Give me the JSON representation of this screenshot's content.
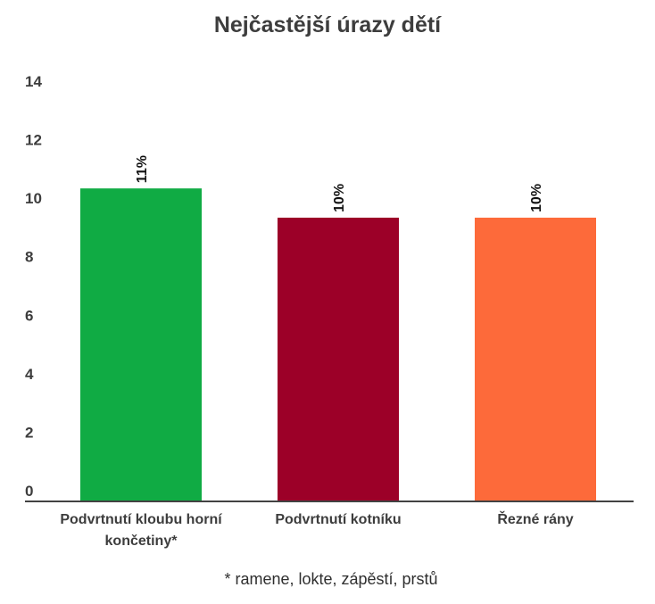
{
  "chart_data": {
    "type": "bar",
    "title": "Nejčastější úrazy dětí",
    "categories": [
      "Podvrtnutí kloubu horní končetiny*",
      "Podvrtnutí kotníku",
      "Řezné rány"
    ],
    "category_lines": [
      [
        "Podvrtnutí kloubu horní",
        "končetiny*"
      ],
      [
        "Podvrtnutí kotníku"
      ],
      [
        "Řezné rány"
      ]
    ],
    "values": [
      10.7,
      9.7,
      9.7
    ],
    "value_labels": [
      "11%",
      "10%",
      "10%"
    ],
    "colors": [
      "#10ab44",
      "#9c0028",
      "#fd6a3a"
    ],
    "yticks": [
      0,
      2,
      4,
      6,
      8,
      10,
      12,
      14
    ],
    "ylim": [
      0,
      14
    ],
    "xlabel": "",
    "ylabel": "",
    "grid": false,
    "footnote": "* ramene, lokte, zápěstí, prstů"
  }
}
